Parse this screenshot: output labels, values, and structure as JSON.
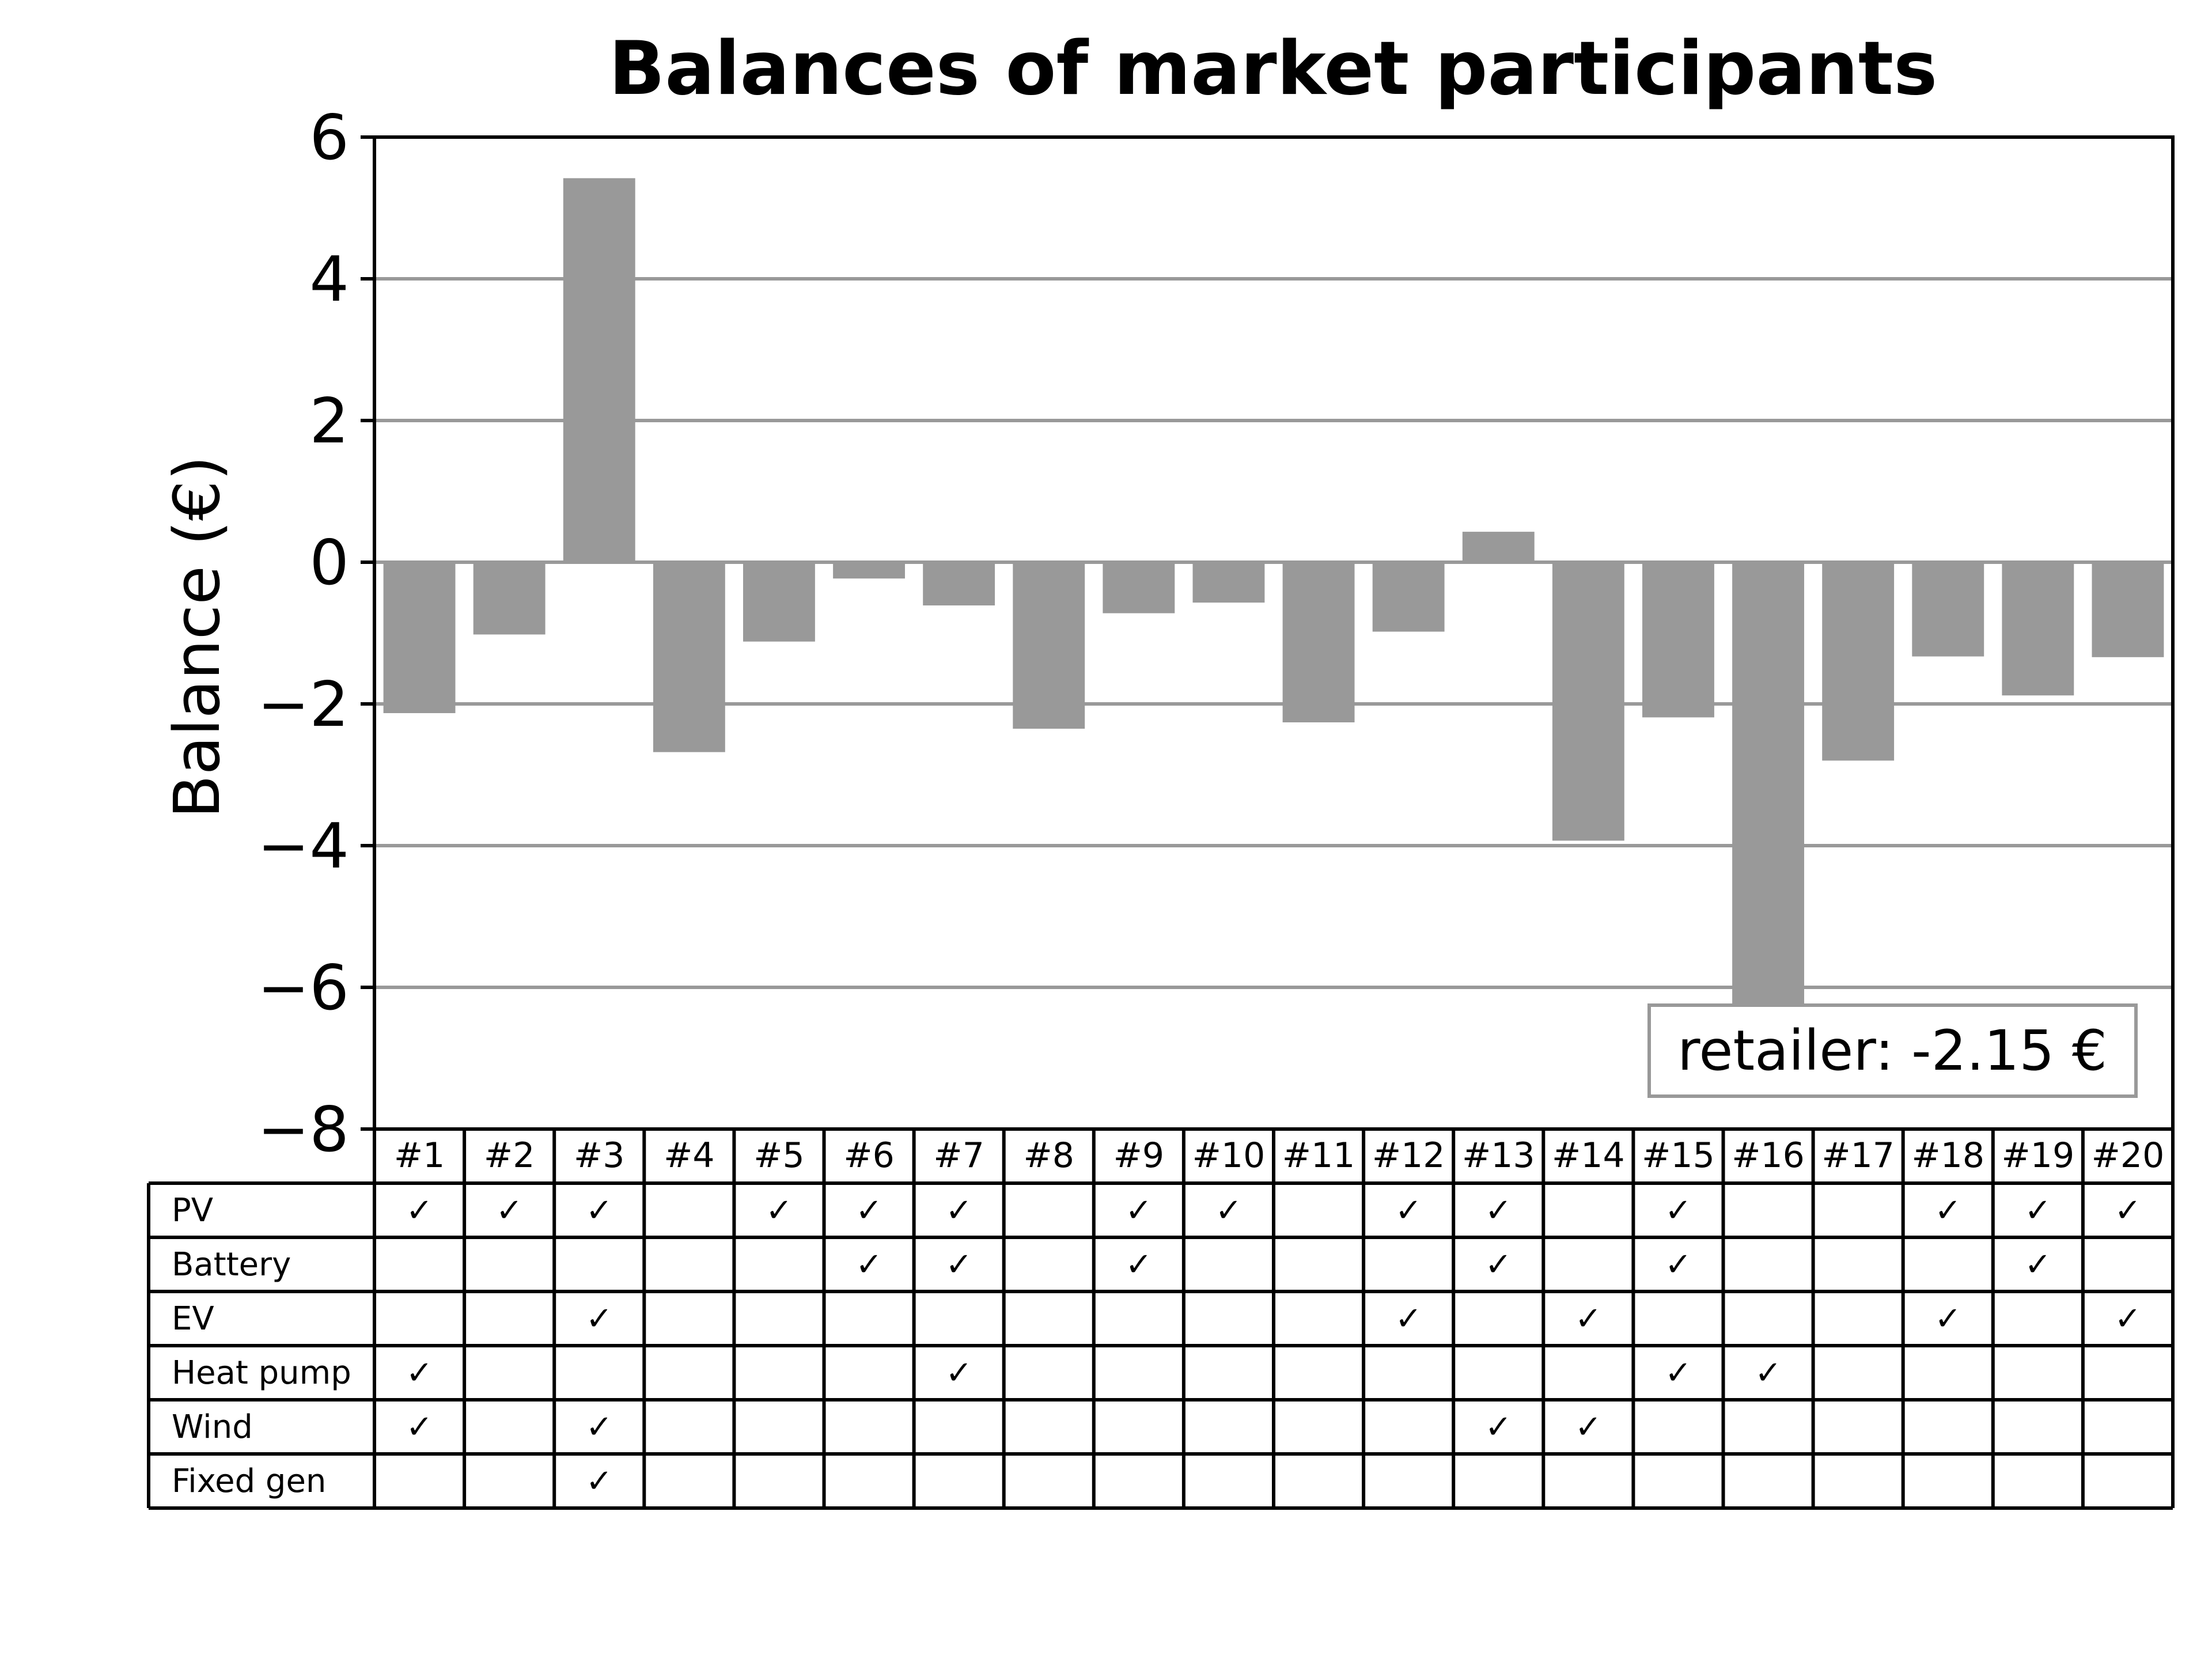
{
  "chart_data": {
    "type": "bar",
    "title": "Balances of market participants",
    "ylabel": "Balance (€)",
    "xlabel": "",
    "ylim": [
      -8,
      6
    ],
    "yticks": [
      6,
      4,
      2,
      0,
      -2,
      -4,
      -6,
      -8
    ],
    "grid": "horizontal",
    "bar_color": "#999999",
    "grid_color": "#999999",
    "categories": [
      "#1",
      "#2",
      "#3",
      "#4",
      "#5",
      "#6",
      "#7",
      "#8",
      "#9",
      "#10",
      "#11",
      "#12",
      "#13",
      "#14",
      "#15",
      "#16",
      "#17",
      "#18",
      "#19",
      "#20"
    ],
    "values": [
      -2.13,
      -1.02,
      5.42,
      -2.68,
      -1.12,
      -0.23,
      -0.61,
      -2.35,
      -0.72,
      -0.57,
      -2.26,
      -0.98,
      0.43,
      -3.93,
      -2.19,
      -6.35,
      -2.8,
      -1.33,
      -1.88,
      -1.34
    ],
    "annotation": {
      "text": "retailer: -2.15 €",
      "placement": "bottom-right",
      "border_color": "#999999"
    },
    "table": {
      "check_symbol": "✓",
      "rows": [
        {
          "label": "PV",
          "checks": [
            1,
            1,
            1,
            0,
            1,
            1,
            1,
            0,
            1,
            1,
            0,
            1,
            1,
            0,
            1,
            0,
            0,
            1,
            1,
            1
          ]
        },
        {
          "label": "Battery",
          "checks": [
            0,
            0,
            0,
            0,
            0,
            1,
            1,
            0,
            1,
            0,
            0,
            0,
            1,
            0,
            1,
            0,
            0,
            0,
            1,
            0
          ]
        },
        {
          "label": "EV",
          "checks": [
            0,
            0,
            1,
            0,
            0,
            0,
            0,
            0,
            0,
            0,
            0,
            1,
            0,
            1,
            0,
            0,
            0,
            1,
            0,
            1
          ]
        },
        {
          "label": "Heat pump",
          "checks": [
            1,
            0,
            0,
            0,
            0,
            0,
            1,
            0,
            0,
            0,
            0,
            0,
            0,
            0,
            1,
            1,
            0,
            0,
            0,
            0
          ]
        },
        {
          "label": "Wind",
          "checks": [
            1,
            0,
            1,
            0,
            0,
            0,
            0,
            0,
            0,
            0,
            0,
            0,
            1,
            1,
            0,
            0,
            0,
            0,
            0,
            0
          ]
        },
        {
          "label": "Fixed gen",
          "checks": [
            0,
            0,
            1,
            0,
            0,
            0,
            0,
            0,
            0,
            0,
            0,
            0,
            0,
            0,
            0,
            0,
            0,
            0,
            0,
            0
          ]
        }
      ]
    }
  }
}
